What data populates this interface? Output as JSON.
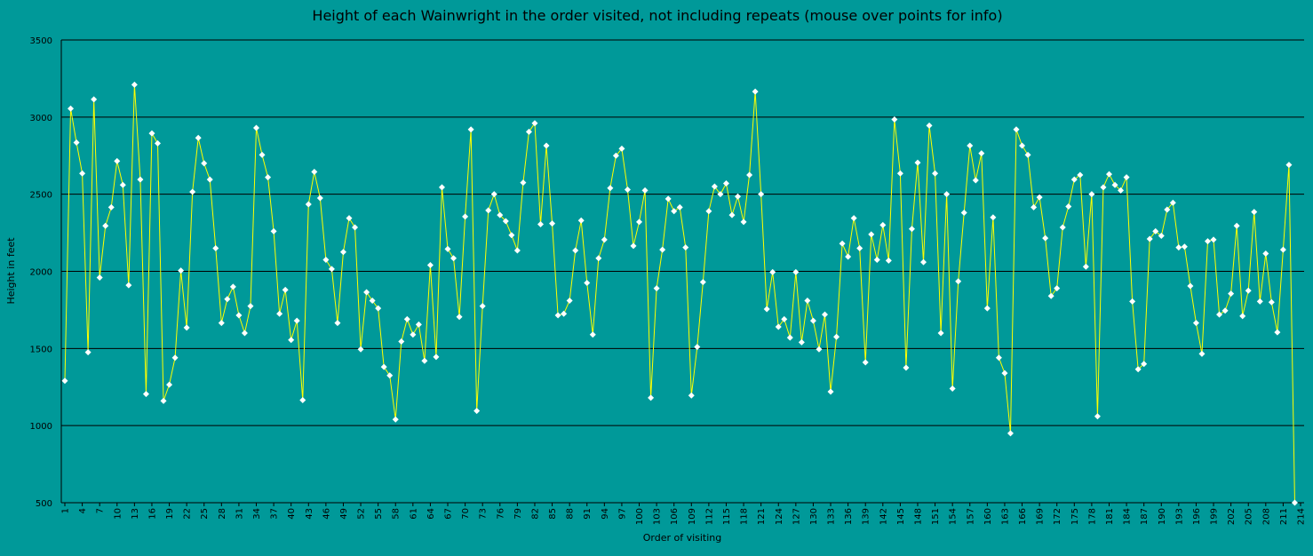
{
  "chart_data": {
    "type": "line",
    "title": "Height of each Wainwright in the order visited, not including repeats (mouse over points for info)",
    "xlabel": "Order of visiting",
    "ylabel": "Height in feet",
    "ylim": [
      500,
      3500
    ],
    "yticks": [
      500,
      1000,
      1500,
      2000,
      2500,
      3000,
      3500
    ],
    "xticks": [
      1,
      4,
      7,
      10,
      13,
      16,
      19,
      22,
      25,
      28,
      31,
      34,
      37,
      40,
      43,
      46,
      49,
      52,
      55,
      58,
      61,
      64,
      67,
      70,
      73,
      76,
      79,
      82,
      85,
      88,
      91,
      94,
      97,
      100,
      103,
      106,
      109,
      112,
      115,
      118,
      121,
      124,
      127,
      130,
      133,
      136,
      139,
      142,
      145,
      148,
      151,
      154,
      157,
      160,
      163,
      166,
      169,
      172,
      175,
      178,
      181,
      184,
      187,
      190,
      193,
      196,
      199,
      202,
      205,
      208,
      211,
      214
    ],
    "x_range": [
      1,
      214
    ],
    "grid": "horizontal",
    "legend": "none",
    "colors": {
      "background": "#009999",
      "line": "#ffff00",
      "marker": "#ffffff",
      "gridline": "#000000"
    },
    "series": [
      {
        "values": [
          1290,
          3055,
          2835,
          2635,
          1475,
          3115,
          1960,
          2295,
          2415,
          2715,
          2560,
          1910,
          3210,
          2595,
          1205,
          2895,
          2830,
          1160,
          1265,
          1440,
          2005,
          1635,
          2515,
          2865,
          2700,
          2595,
          2150,
          1665,
          1820,
          1900,
          1715,
          1600,
          1775,
          2930,
          2755,
          2610,
          2260,
          1725,
          1880,
          1555,
          1680,
          1165,
          2435,
          2645,
          2475,
          2075,
          2015,
          1665,
          2125,
          2345,
          2285,
          1495,
          1865,
          1810,
          1760,
          1380,
          1325,
          1040,
          1545,
          1690,
          1590,
          1655,
          1420,
          2040,
          1445,
          2545,
          2145,
          2085,
          1705,
          2355,
          2920,
          1095,
          1775,
          2395,
          2500,
          2365,
          2325,
          2235,
          2135,
          2575,
          2905,
          2960,
          2305,
          2815,
          2310,
          1715,
          1725,
          1810,
          2135,
          2330,
          1925,
          1590,
          2085,
          2205,
          2540,
          2750,
          2795,
          2530,
          2165,
          2320,
          2525,
          1180,
          1890,
          2140,
          2470,
          2390,
          2415,
          2155,
          1195,
          1510,
          1930,
          2390,
          2550,
          2500,
          2570,
          2365,
          2485,
          2320,
          2625,
          3165,
          2500,
          1755,
          1995,
          1640,
          1690,
          1570,
          1995,
          1540,
          1810,
          1680,
          1495,
          1720,
          1220,
          1575,
          2180,
          2095,
          2345,
          2150,
          1410,
          2240,
          2075,
          2300,
          2070,
          2985,
          2635,
          1375,
          2275,
          2705,
          2060,
          2945,
          2635,
          1600,
          2500,
          1240,
          1935,
          2380,
          2815,
          2590,
          2765,
          1760,
          2350,
          1440,
          1340,
          950,
          2920,
          2815,
          2755,
          2415,
          2480,
          2215,
          1840,
          1890,
          2285,
          2420,
          2595,
          2625,
          2030,
          2500,
          1060,
          2545,
          2630,
          2560,
          2525,
          2610,
          1805,
          1365,
          1400,
          2210,
          2260,
          2230,
          2400,
          2445,
          2155,
          2160,
          1905,
          1665,
          1465,
          2195,
          2205,
          1720,
          1745,
          1855,
          2295,
          1710,
          1875,
          2385,
          1805,
          2115,
          1800,
          1605,
          2140,
          2690,
          500
        ]
      }
    ]
  }
}
